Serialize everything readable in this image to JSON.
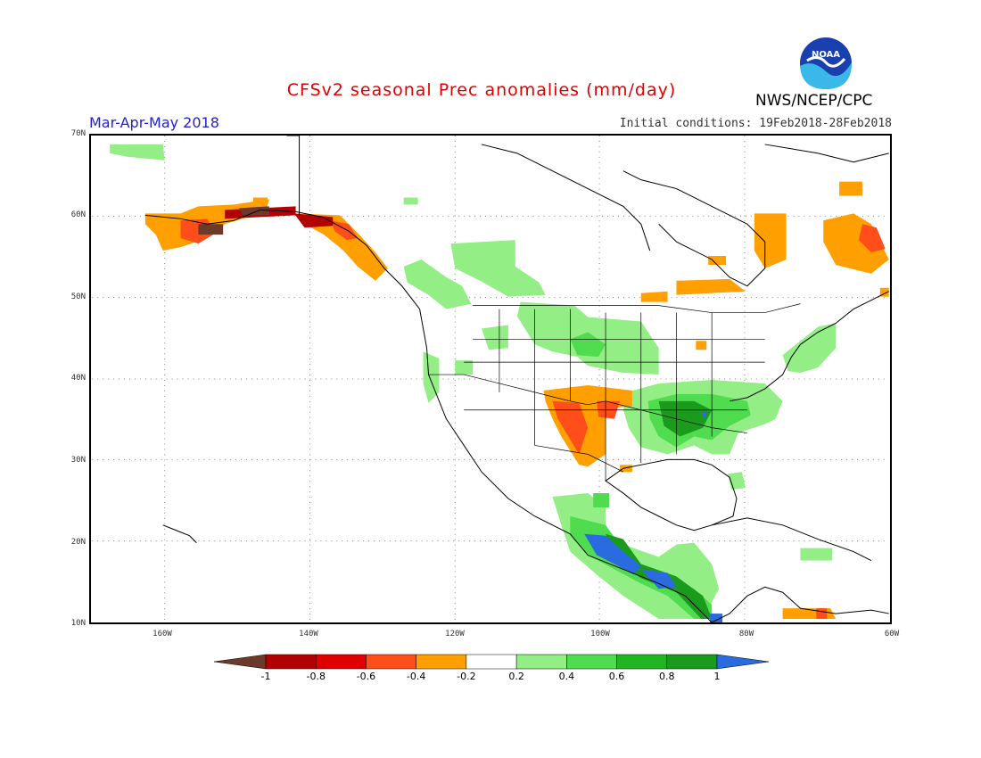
{
  "title": "CFSv2 seasonal Prec anomalies (mm/day)",
  "season": "Mar-Apr-May 2018",
  "initial_conditions": "Initial conditions: 19Feb2018-28Feb2018",
  "agency": "NWS/NCEP/CPC",
  "logo_text": "NOAA",
  "map": {
    "lat_labels": [
      "70N",
      "60N",
      "50N",
      "40N",
      "30N",
      "20N",
      "10N"
    ],
    "lon_labels": [
      "160W",
      "140W",
      "120W",
      "100W",
      "80W",
      "60W"
    ],
    "lat_range": [
      10,
      70
    ],
    "lon_range": [
      -170,
      -60
    ],
    "units": "mm/day"
  },
  "legend": {
    "ticks": [
      "-1",
      "-0.8",
      "-0.6",
      "-0.4",
      "-0.2",
      "0.2",
      "0.4",
      "0.6",
      "0.8",
      "1"
    ],
    "colors": [
      "#6b3a2a",
      "#b30000",
      "#e00000",
      "#ff4e1a",
      "#ff9f00",
      "#ffffff",
      "#94ee86",
      "#4fdd4f",
      "#22b522",
      "#1b9b1b",
      "#2a6ce0"
    ]
  },
  "colors": {
    "land_outline": "#000000",
    "grid": "#888888",
    "title": "#e00000",
    "season": "#2222cc"
  }
}
